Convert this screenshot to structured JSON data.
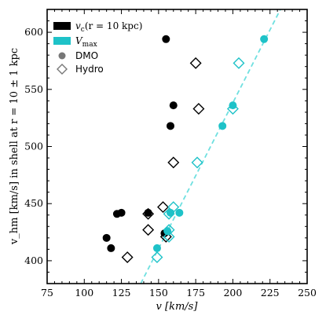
{
  "chart_data": {
    "type": "scatter",
    "xlabel": "v [km/s]",
    "ylabel": "v_hm [km/s] in shell at r = 10 ± 1 kpc",
    "xlim": [
      75,
      250
    ],
    "ylim": [
      380,
      620
    ],
    "xticks": [
      "75",
      "100",
      "125",
      "150",
      "175",
      "200",
      "225",
      "250"
    ],
    "yticks": [
      "400",
      "450",
      "500",
      "550",
      "600"
    ],
    "grid": false,
    "legend_position": "top-left",
    "legend": {
      "vc_label_sym": "v",
      "vc_label_sub": "c",
      "vc_label_rest": "(r = 10 kpc)",
      "vmax_label_sym": "V",
      "vmax_label_sub": "max",
      "dmo_label": "DMO",
      "hydro_label": "Hydro"
    },
    "colors": {
      "vc": "#000000",
      "vmax": "#1ec2c8",
      "reference_line": "#6fe0e0"
    },
    "reference_line": {
      "style": "dashed",
      "points": [
        [
          138,
          380
        ],
        [
          232,
          620
        ]
      ]
    },
    "series": [
      {
        "name": "v_c(r = 10 kpc) DMO",
        "marker": "filled-circle",
        "color": "#000000",
        "points": [
          [
            155,
            594
          ],
          [
            160,
            536
          ],
          [
            158,
            518
          ],
          [
            125,
            442
          ],
          [
            122,
            441
          ],
          [
            143,
            442
          ],
          [
            154,
            424
          ],
          [
            115,
            420
          ],
          [
            118,
            411
          ]
        ]
      },
      {
        "name": "v_c(r = 10 kpc) Hydro",
        "marker": "open-diamond",
        "color": "#000000",
        "points": [
          [
            175,
            573
          ],
          [
            177,
            533
          ],
          [
            160,
            486
          ],
          [
            153,
            447
          ],
          [
            143,
            441
          ],
          [
            143,
            427
          ],
          [
            155,
            421
          ],
          [
            129,
            403
          ]
        ]
      },
      {
        "name": "V_max DMO",
        "marker": "filled-circle",
        "color": "#1ec2c8",
        "points": [
          [
            221,
            594
          ],
          [
            200,
            536
          ],
          [
            193,
            518
          ],
          [
            164,
            442
          ],
          [
            158,
            442
          ],
          [
            156,
            426
          ],
          [
            149,
            411
          ]
        ]
      },
      {
        "name": "V_max Hydro",
        "marker": "open-diamond",
        "color": "#1ec2c8",
        "points": [
          [
            204,
            573
          ],
          [
            200,
            533
          ],
          [
            176,
            486
          ],
          [
            160,
            447
          ],
          [
            157,
            441
          ],
          [
            157,
            427
          ],
          [
            157,
            421
          ],
          [
            149,
            403
          ]
        ]
      }
    ]
  }
}
